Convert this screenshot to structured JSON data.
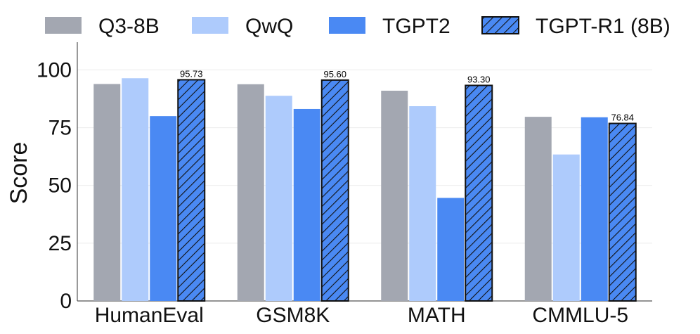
{
  "chart_data": {
    "type": "bar",
    "title": "",
    "xlabel": "",
    "ylabel": "Score",
    "ylim": [
      0,
      112
    ],
    "yticks": [
      0,
      25,
      50,
      75,
      100
    ],
    "categories": [
      "HumanEval",
      "GSM8K",
      "MATH",
      "CMMLU-5"
    ],
    "series": [
      {
        "name": "Q3-8B",
        "color": "#a3a7b1",
        "hatched": false,
        "values": [
          93.9,
          93.8,
          91.0,
          79.7
        ]
      },
      {
        "name": "QwQ",
        "color": "#aecbfc",
        "hatched": false,
        "values": [
          96.4,
          88.8,
          84.3,
          63.4
        ]
      },
      {
        "name": "TGPT2",
        "color": "#4a89f3",
        "hatched": false,
        "values": [
          80.0,
          83.1,
          44.6,
          79.5
        ]
      },
      {
        "name": "TGPT-R1 (8B)",
        "color": "#4a89f3",
        "hatched": true,
        "values": [
          95.73,
          95.6,
          93.3,
          76.84
        ],
        "data_labels": [
          "95.73",
          "95.60",
          "93.30",
          "76.84"
        ]
      }
    ],
    "legend": "top",
    "grid": "horizontal"
  }
}
